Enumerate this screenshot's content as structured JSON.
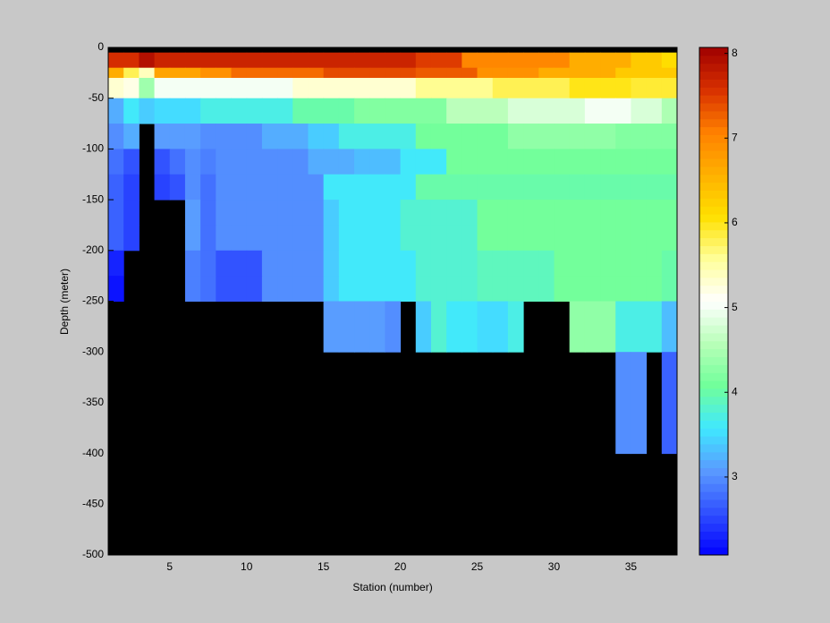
{
  "chart_data": {
    "type": "heatmap",
    "xlabel": "Station (number)",
    "ylabel": "Depth (meter)",
    "xlim": [
      1,
      38
    ],
    "ylim": [
      -500,
      0
    ],
    "xticks": [
      5,
      10,
      15,
      20,
      25,
      30,
      35
    ],
    "yticks": [
      0,
      -50,
      -100,
      -150,
      -200,
      -250,
      -300,
      -350,
      -400,
      -450,
      -500
    ],
    "x": [
      1,
      2,
      3,
      4,
      5,
      6,
      7,
      8,
      9,
      10,
      11,
      12,
      13,
      14,
      15,
      16,
      17,
      18,
      19,
      20,
      21,
      22,
      23,
      24,
      25,
      26,
      27,
      28,
      29,
      30,
      31,
      32,
      33,
      34,
      35,
      36,
      37,
      38
    ],
    "y": [
      0,
      -5,
      -20,
      -30,
      -50,
      -75,
      -100,
      -125,
      -150,
      -175,
      -200,
      -225,
      -250,
      -300,
      -400,
      -500
    ],
    "z": [
      [
        null,
        null,
        null,
        null,
        null,
        null,
        null,
        null,
        null,
        null,
        null,
        null,
        null,
        null,
        null,
        null,
        null,
        null,
        null,
        null,
        null,
        null,
        null,
        null,
        null,
        null,
        null,
        null,
        null,
        null,
        null,
        null,
        null,
        null,
        null,
        null,
        null
      ],
      [
        7.6,
        7.6,
        7.9,
        7.7,
        7.7,
        7.7,
        7.7,
        7.7,
        7.7,
        7.7,
        7.7,
        7.7,
        7.7,
        7.7,
        7.7,
        7.7,
        7.7,
        7.7,
        7.7,
        7.7,
        7.5,
        7.5,
        7.5,
        7.0,
        7.0,
        7.0,
        7.0,
        7.0,
        7.0,
        7.0,
        6.6,
        6.6,
        6.6,
        6.6,
        6.3,
        6.3,
        6.1
      ],
      [
        6.6,
        5.8,
        5.4,
        6.7,
        6.7,
        6.7,
        6.9,
        6.9,
        7.2,
        7.2,
        7.2,
        7.2,
        7.2,
        7.2,
        7.4,
        7.4,
        7.4,
        7.4,
        7.4,
        7.4,
        7.3,
        7.3,
        7.3,
        7.3,
        6.9,
        6.9,
        6.9,
        6.9,
        6.6,
        6.6,
        6.6,
        6.6,
        6.6,
        6.3,
        6.3,
        6.3,
        6.3
      ],
      [
        5.3,
        5.2,
        4.4,
        5.0,
        5.0,
        5.0,
        5.0,
        5.0,
        5.0,
        5.0,
        5.0,
        5.0,
        5.3,
        5.3,
        5.3,
        5.3,
        5.3,
        5.3,
        5.3,
        5.3,
        5.6,
        5.6,
        5.6,
        5.6,
        5.6,
        5.8,
        5.8,
        5.8,
        5.8,
        5.8,
        6.0,
        6.0,
        6.0,
        6.0,
        5.9,
        5.9,
        5.9
      ],
      [
        3.2,
        3.6,
        3.4,
        3.5,
        3.5,
        3.5,
        3.7,
        3.7,
        3.7,
        3.7,
        3.7,
        3.7,
        4.0,
        4.0,
        4.0,
        4.0,
        4.2,
        4.2,
        4.2,
        4.2,
        4.2,
        4.2,
        4.6,
        4.6,
        4.6,
        4.6,
        4.8,
        4.8,
        4.8,
        4.8,
        4.8,
        5.0,
        5.0,
        5.0,
        4.8,
        4.8,
        4.5
      ],
      [
        3.0,
        3.2,
        null,
        3.1,
        3.1,
        3.1,
        3.0,
        3.0,
        3.0,
        3.0,
        3.2,
        3.2,
        3.2,
        3.4,
        3.4,
        3.7,
        3.7,
        3.7,
        3.7,
        3.7,
        4.1,
        4.1,
        4.1,
        4.1,
        4.1,
        4.1,
        4.3,
        4.3,
        4.3,
        4.3,
        4.3,
        4.3,
        4.3,
        4.2,
        4.2,
        4.2,
        4.2
      ],
      [
        2.8,
        2.6,
        null,
        2.6,
        2.8,
        3.0,
        2.9,
        3.0,
        3.0,
        3.0,
        3.0,
        3.0,
        3.0,
        3.2,
        3.2,
        3.2,
        3.3,
        3.3,
        3.3,
        3.6,
        3.6,
        3.6,
        4.1,
        4.1,
        4.1,
        4.1,
        4.1,
        4.1,
        4.1,
        4.1,
        4.1,
        4.1,
        4.1,
        4.1,
        4.1,
        4.1,
        4.1
      ],
      [
        2.7,
        2.5,
        null,
        2.5,
        2.6,
        3.0,
        2.8,
        3.0,
        3.0,
        3.0,
        3.0,
        3.0,
        3.0,
        3.0,
        3.6,
        3.6,
        3.6,
        3.6,
        3.6,
        3.6,
        4.0,
        4.0,
        4.0,
        4.0,
        4.0,
        4.0,
        4.0,
        4.0,
        4.0,
        4.0,
        4.0,
        4.0,
        4.0,
        4.0,
        4.0,
        4.0,
        4.0
      ],
      [
        2.7,
        2.5,
        null,
        null,
        null,
        3.1,
        2.8,
        3.0,
        3.0,
        3.0,
        3.0,
        3.0,
        3.0,
        3.0,
        3.4,
        3.6,
        3.6,
        3.6,
        3.6,
        3.8,
        3.8,
        3.8,
        3.8,
        3.8,
        4.1,
        4.1,
        4.1,
        4.1,
        4.1,
        4.1,
        4.1,
        4.1,
        4.1,
        4.1,
        4.1,
        4.1,
        4.1
      ],
      [
        2.7,
        2.5,
        null,
        null,
        null,
        3.1,
        2.8,
        3.0,
        3.0,
        3.0,
        3.0,
        3.0,
        3.0,
        3.0,
        3.4,
        3.6,
        3.6,
        3.6,
        3.6,
        3.8,
        3.8,
        3.8,
        3.8,
        3.8,
        4.1,
        4.1,
        4.1,
        4.1,
        4.1,
        4.1,
        4.1,
        4.1,
        4.1,
        4.1,
        4.1,
        4.1,
        4.1
      ],
      [
        2.3,
        null,
        null,
        null,
        null,
        2.9,
        2.8,
        2.6,
        2.6,
        2.6,
        3.0,
        3.0,
        3.0,
        3.0,
        3.4,
        3.6,
        3.6,
        3.6,
        3.6,
        3.6,
        3.8,
        3.8,
        3.8,
        3.8,
        3.9,
        3.9,
        3.9,
        3.9,
        3.9,
        4.1,
        4.1,
        4.1,
        4.1,
        4.1,
        4.1,
        4.1,
        4.0
      ],
      [
        2.2,
        null,
        null,
        null,
        null,
        2.9,
        2.8,
        2.6,
        2.6,
        2.6,
        3.0,
        3.0,
        3.0,
        3.0,
        3.4,
        3.6,
        3.6,
        3.6,
        3.6,
        3.6,
        3.8,
        3.8,
        3.8,
        3.8,
        3.9,
        3.9,
        3.9,
        3.9,
        3.9,
        4.1,
        4.1,
        4.1,
        4.1,
        4.1,
        4.1,
        4.1,
        4.0
      ],
      [
        null,
        null,
        null,
        null,
        null,
        null,
        null,
        null,
        null,
        null,
        null,
        null,
        null,
        null,
        3.1,
        3.1,
        3.1,
        3.1,
        3.0,
        null,
        3.4,
        3.8,
        3.6,
        3.6,
        3.5,
        3.5,
        3.7,
        null,
        null,
        null,
        4.3,
        4.3,
        4.3,
        3.7,
        3.7,
        3.7,
        3.3
      ],
      [
        null,
        null,
        null,
        null,
        null,
        null,
        null,
        null,
        null,
        null,
        null,
        null,
        null,
        null,
        null,
        null,
        null,
        null,
        null,
        null,
        null,
        null,
        null,
        null,
        null,
        null,
        null,
        null,
        null,
        null,
        null,
        null,
        null,
        3.0,
        3.0,
        null,
        2.7
      ],
      [
        null,
        null,
        null,
        null,
        null,
        null,
        null,
        null,
        null,
        null,
        null,
        null,
        null,
        null,
        null,
        null,
        null,
        null,
        null,
        null,
        null,
        null,
        null,
        null,
        null,
        null,
        null,
        null,
        null,
        null,
        null,
        null,
        null,
        null,
        null,
        null,
        null
      ]
    ],
    "clim": [
      2.08,
      8.07
    ],
    "cticks": [
      3,
      4,
      5,
      6,
      7,
      8
    ],
    "colormap": [
      "#0000ff",
      "#3050ff",
      "#5a9aff",
      "#40e8ff",
      "#70ff9a",
      "#b8ffb8",
      "#ffffff",
      "#ffff9a",
      "#ffe000",
      "#ffb000",
      "#ff8000",
      "#d83000",
      "#a00000"
    ],
    "nan_color": "#000000"
  }
}
